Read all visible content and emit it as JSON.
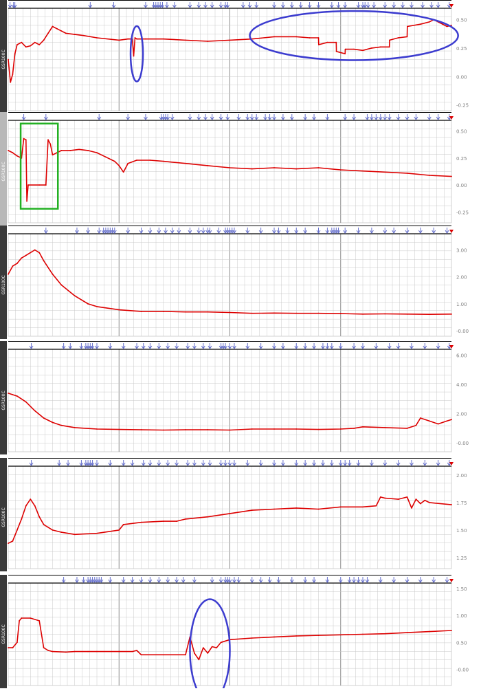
{
  "colors": {
    "trace": "#dd0000",
    "grid": "#c8c8c8",
    "grid_major": "#8c8c8c",
    "marker": "#6670cc",
    "left_bar": "#3a3a3a",
    "left_bar_alt": "#b8b8b8",
    "annotation_blue": "#3c3ccf",
    "annotation_green": "#22b022",
    "tick_text": "#808080",
    "rule": "#000000"
  },
  "chart_data": [
    {
      "type": "line",
      "ylabel": "GSR100C",
      "ylim": [
        -0.3,
        0.6
      ],
      "yticks": [
        "0.50",
        "0.25",
        "0.00",
        "-0.25"
      ],
      "y_tick_values": [
        0.5,
        0.25,
        0.0,
        -0.25
      ],
      "x": [
        0,
        0.005,
        0.01,
        0.015,
        0.02,
        0.03,
        0.04,
        0.05,
        0.06,
        0.07,
        0.08,
        0.09,
        0.1,
        0.11,
        0.12,
        0.13,
        0.15,
        0.17,
        0.2,
        0.25,
        0.27,
        0.28,
        0.283,
        0.286,
        0.29,
        0.31,
        0.35,
        0.4,
        0.45,
        0.5,
        0.55,
        0.6,
        0.65,
        0.68,
        0.7,
        0.7005,
        0.72,
        0.74,
        0.7405,
        0.76,
        0.7605,
        0.78,
        0.8,
        0.82,
        0.84,
        0.86,
        0.8605,
        0.88,
        0.9,
        0.9005,
        0.93,
        0.95,
        0.96,
        0.98,
        0.99,
        1.0
      ],
      "series": [
        {
          "values": [
            0.15,
            -0.05,
            0.02,
            0.2,
            0.28,
            0.3,
            0.26,
            0.27,
            0.3,
            0.28,
            0.32,
            0.38,
            0.44,
            0.42,
            0.4,
            0.38,
            0.37,
            0.36,
            0.34,
            0.32,
            0.33,
            0.33,
            0.18,
            0.34,
            0.33,
            0.33,
            0.33,
            0.32,
            0.31,
            0.32,
            0.33,
            0.35,
            0.35,
            0.34,
            0.34,
            0.28,
            0.3,
            0.3,
            0.22,
            0.2,
            0.24,
            0.24,
            0.23,
            0.25,
            0.26,
            0.26,
            0.32,
            0.34,
            0.35,
            0.44,
            0.46,
            0.48,
            0.5,
            0.46,
            0.44,
            0.45
          ]
        }
      ],
      "markers": [
        0.004,
        0.012,
        0.015,
        0.185,
        0.238,
        0.31,
        0.328,
        0.333,
        0.338,
        0.343,
        0.348,
        0.358,
        0.375,
        0.41,
        0.43,
        0.445,
        0.46,
        0.48,
        0.49,
        0.495,
        0.53,
        0.545,
        0.56,
        0.6,
        0.62,
        0.64,
        0.66,
        0.68,
        0.7,
        0.73,
        0.745,
        0.76,
        0.79,
        0.8,
        0.805,
        0.812,
        0.825,
        0.85,
        0.87,
        0.89,
        0.91,
        0.935,
        0.955,
        0.97,
        0.995
      ],
      "annotations": [
        {
          "shape": "ellipse",
          "color": "blue",
          "cx": 0.29,
          "cy": 0.2,
          "rx": 0.014,
          "ry": 0.27
        },
        {
          "shape": "ellipse",
          "color": "blue",
          "cx": 0.78,
          "cy": 0.36,
          "rx": 0.235,
          "ry": 0.24
        }
      ]
    },
    {
      "type": "line",
      "ylabel": "GSR100C",
      "ylim": [
        -0.35,
        0.6
      ],
      "yticks": [
        "0.50",
        "0.25",
        "0.00",
        "-0.25"
      ],
      "y_tick_values": [
        0.5,
        0.25,
        0.0,
        -0.25
      ],
      "x": [
        0,
        0.01,
        0.02,
        0.03,
        0.035,
        0.04,
        0.042,
        0.045,
        0.07,
        0.085,
        0.09,
        0.095,
        0.1,
        0.11,
        0.12,
        0.14,
        0.16,
        0.18,
        0.2,
        0.22,
        0.24,
        0.25,
        0.26,
        0.27,
        0.29,
        0.32,
        0.35,
        0.4,
        0.45,
        0.5,
        0.55,
        0.6,
        0.65,
        0.7,
        0.75,
        0.8,
        0.85,
        0.9,
        0.95,
        1.0
      ],
      "series": [
        {
          "values": [
            0.32,
            0.3,
            0.27,
            0.25,
            0.43,
            0.42,
            -0.15,
            0.0,
            0.0,
            0.0,
            0.42,
            0.38,
            0.28,
            0.3,
            0.32,
            0.32,
            0.33,
            0.32,
            0.3,
            0.26,
            0.22,
            0.18,
            0.12,
            0.2,
            0.23,
            0.23,
            0.22,
            0.2,
            0.18,
            0.16,
            0.15,
            0.16,
            0.15,
            0.16,
            0.14,
            0.13,
            0.12,
            0.11,
            0.09,
            0.08
          ]
        }
      ],
      "markers": [
        0.035,
        0.085,
        0.205,
        0.27,
        0.31,
        0.345,
        0.35,
        0.355,
        0.36,
        0.37,
        0.41,
        0.43,
        0.445,
        0.46,
        0.48,
        0.495,
        0.52,
        0.54,
        0.55,
        0.56,
        0.58,
        0.59,
        0.6,
        0.62,
        0.64,
        0.67,
        0.69,
        0.72,
        0.76,
        0.78,
        0.81,
        0.82,
        0.83,
        0.84,
        0.85,
        0.86,
        0.88,
        0.9,
        0.92,
        0.95,
        0.97,
        0.995
      ],
      "annotations": [
        {
          "shape": "rect",
          "color": "green",
          "x0": 0.028,
          "x1": 0.112,
          "y0": 0.57,
          "y1": -0.22
        }
      ]
    },
    {
      "type": "line",
      "ylabel": "GSR100C",
      "ylim": [
        -0.2,
        3.6
      ],
      "yticks": [
        "3.00",
        "2.00",
        "1.00",
        "-0.00"
      ],
      "y_tick_values": [
        3.0,
        2.0,
        1.0,
        0.0
      ],
      "x": [
        0,
        0.01,
        0.02,
        0.03,
        0.04,
        0.05,
        0.06,
        0.07,
        0.08,
        0.1,
        0.12,
        0.15,
        0.18,
        0.2,
        0.25,
        0.3,
        0.35,
        0.4,
        0.45,
        0.5,
        0.55,
        0.6,
        0.65,
        0.7,
        0.75,
        0.8,
        0.85,
        0.9,
        0.95,
        1.0
      ],
      "series": [
        {
          "values": [
            2.1,
            2.4,
            2.5,
            2.7,
            2.8,
            2.9,
            3.0,
            2.9,
            2.6,
            2.1,
            1.7,
            1.3,
            1.0,
            0.9,
            0.78,
            0.72,
            0.72,
            0.7,
            0.7,
            0.68,
            0.65,
            0.66,
            0.65,
            0.65,
            0.64,
            0.62,
            0.63,
            0.62,
            0.61,
            0.62
          ]
        }
      ],
      "markers": [
        0.085,
        0.155,
        0.18,
        0.205,
        0.215,
        0.22,
        0.225,
        0.23,
        0.235,
        0.24,
        0.27,
        0.3,
        0.32,
        0.34,
        0.355,
        0.37,
        0.385,
        0.41,
        0.43,
        0.44,
        0.45,
        0.455,
        0.475,
        0.49,
        0.495,
        0.5,
        0.505,
        0.51,
        0.54,
        0.57,
        0.6,
        0.61,
        0.63,
        0.65,
        0.67,
        0.7,
        0.72,
        0.73,
        0.735,
        0.74,
        0.745,
        0.76,
        0.79,
        0.82,
        0.85,
        0.87,
        0.9,
        0.93,
        0.96,
        0.99
      ],
      "annotations": []
    },
    {
      "type": "line",
      "ylabel": "GSR100C",
      "ylim": [
        -0.6,
        6.4
      ],
      "yticks": [
        "6.00",
        "4.00",
        "2.00",
        "-0.00"
      ],
      "y_tick_values": [
        6.0,
        4.0,
        2.0,
        0.0
      ],
      "x": [
        0,
        0.01,
        0.02,
        0.04,
        0.06,
        0.08,
        0.1,
        0.12,
        0.15,
        0.2,
        0.25,
        0.3,
        0.35,
        0.4,
        0.45,
        0.5,
        0.55,
        0.6,
        0.65,
        0.7,
        0.75,
        0.78,
        0.8,
        0.85,
        0.9,
        0.92,
        0.93,
        0.95,
        0.97,
        0.99,
        1.0
      ],
      "series": [
        {
          "values": [
            3.4,
            3.3,
            3.2,
            2.8,
            2.2,
            1.7,
            1.4,
            1.2,
            1.05,
            0.95,
            0.92,
            0.9,
            0.88,
            0.9,
            0.9,
            0.88,
            0.95,
            0.95,
            0.95,
            0.92,
            0.95,
            1.0,
            1.1,
            1.05,
            1.0,
            1.2,
            1.7,
            1.5,
            1.3,
            1.5,
            1.6
          ]
        }
      ],
      "markers": [
        0.052,
        0.125,
        0.14,
        0.165,
        0.175,
        0.18,
        0.185,
        0.19,
        0.2,
        0.23,
        0.26,
        0.29,
        0.305,
        0.32,
        0.34,
        0.36,
        0.38,
        0.405,
        0.42,
        0.44,
        0.455,
        0.48,
        0.485,
        0.49,
        0.5,
        0.51,
        0.54,
        0.57,
        0.6,
        0.62,
        0.65,
        0.67,
        0.69,
        0.71,
        0.72,
        0.73,
        0.75,
        0.78,
        0.8,
        0.83,
        0.86,
        0.88,
        0.91,
        0.94,
        0.97,
        0.995
      ],
      "annotations": []
    },
    {
      "type": "line",
      "ylabel": "GSR100C",
      "ylim": [
        1.15,
        2.08
      ],
      "yticks": [
        "2.00",
        "1.75",
        "1.50",
        "1.25"
      ],
      "y_tick_values": [
        2.0,
        1.75,
        1.5,
        1.25
      ],
      "x": [
        0,
        0.01,
        0.02,
        0.03,
        0.04,
        0.05,
        0.06,
        0.07,
        0.08,
        0.1,
        0.12,
        0.15,
        0.2,
        0.25,
        0.26,
        0.3,
        0.35,
        0.38,
        0.4,
        0.45,
        0.5,
        0.55,
        0.6,
        0.65,
        0.7,
        0.75,
        0.8,
        0.83,
        0.84,
        0.85,
        0.88,
        0.9,
        0.91,
        0.92,
        0.93,
        0.94,
        0.95,
        1.0
      ],
      "series": [
        {
          "values": [
            1.38,
            1.4,
            1.5,
            1.6,
            1.72,
            1.78,
            1.72,
            1.62,
            1.55,
            1.5,
            1.48,
            1.46,
            1.47,
            1.5,
            1.55,
            1.57,
            1.58,
            1.58,
            1.6,
            1.62,
            1.65,
            1.68,
            1.69,
            1.7,
            1.69,
            1.71,
            1.71,
            1.72,
            1.8,
            1.79,
            1.78,
            1.8,
            1.7,
            1.78,
            1.74,
            1.77,
            1.75,
            1.73
          ]
        }
      ],
      "markers": [
        0.052,
        0.115,
        0.135,
        0.165,
        0.175,
        0.18,
        0.185,
        0.19,
        0.2,
        0.23,
        0.26,
        0.28,
        0.305,
        0.32,
        0.34,
        0.36,
        0.38,
        0.405,
        0.42,
        0.44,
        0.455,
        0.48,
        0.49,
        0.5,
        0.51,
        0.54,
        0.57,
        0.6,
        0.62,
        0.65,
        0.67,
        0.69,
        0.71,
        0.73,
        0.75,
        0.76,
        0.77,
        0.79,
        0.82,
        0.85,
        0.88,
        0.91,
        0.94,
        0.97,
        0.995
      ],
      "annotations": []
    },
    {
      "type": "line",
      "ylabel": "GSR100C",
      "ylim": [
        -0.3,
        1.6
      ],
      "yticks": [
        "1.50",
        "1.00",
        "0.50",
        "-0.00"
      ],
      "y_tick_values": [
        1.5,
        1.0,
        0.5,
        0.0
      ],
      "x": [
        0,
        0.01,
        0.02,
        0.025,
        0.03,
        0.05,
        0.07,
        0.08,
        0.09,
        0.1,
        0.13,
        0.15,
        0.18,
        0.2,
        0.25,
        0.28,
        0.29,
        0.3,
        0.35,
        0.4,
        0.41,
        0.42,
        0.43,
        0.44,
        0.45,
        0.46,
        0.47,
        0.48,
        0.5,
        0.55,
        0.6,
        0.65,
        0.7,
        0.75,
        0.8,
        0.85,
        0.9,
        0.95,
        1.0
      ],
      "series": [
        {
          "values": [
            0.4,
            0.4,
            0.5,
            0.9,
            0.95,
            0.95,
            0.9,
            0.4,
            0.35,
            0.33,
            0.32,
            0.33,
            0.33,
            0.33,
            0.33,
            0.33,
            0.35,
            0.27,
            0.27,
            0.27,
            0.6,
            0.3,
            0.18,
            0.4,
            0.3,
            0.42,
            0.4,
            0.5,
            0.55,
            0.58,
            0.6,
            0.62,
            0.63,
            0.64,
            0.65,
            0.66,
            0.68,
            0.7,
            0.72
          ]
        }
      ],
      "markers": [
        0.125,
        0.155,
        0.17,
        0.18,
        0.185,
        0.19,
        0.195,
        0.2,
        0.205,
        0.21,
        0.23,
        0.26,
        0.28,
        0.3,
        0.32,
        0.34,
        0.36,
        0.38,
        0.395,
        0.42,
        0.46,
        0.48,
        0.49,
        0.495,
        0.5,
        0.51,
        0.52,
        0.55,
        0.57,
        0.59,
        0.61,
        0.64,
        0.67,
        0.69,
        0.72,
        0.75,
        0.77,
        0.78,
        0.79,
        0.8,
        0.81,
        0.84,
        0.87,
        0.9,
        0.93,
        0.96,
        0.99
      ],
      "annotations": [
        {
          "shape": "ellipse",
          "color": "blue",
          "cx": 0.455,
          "cy": 0.35,
          "rx": 0.045,
          "ry": 0.5
        }
      ]
    }
  ]
}
